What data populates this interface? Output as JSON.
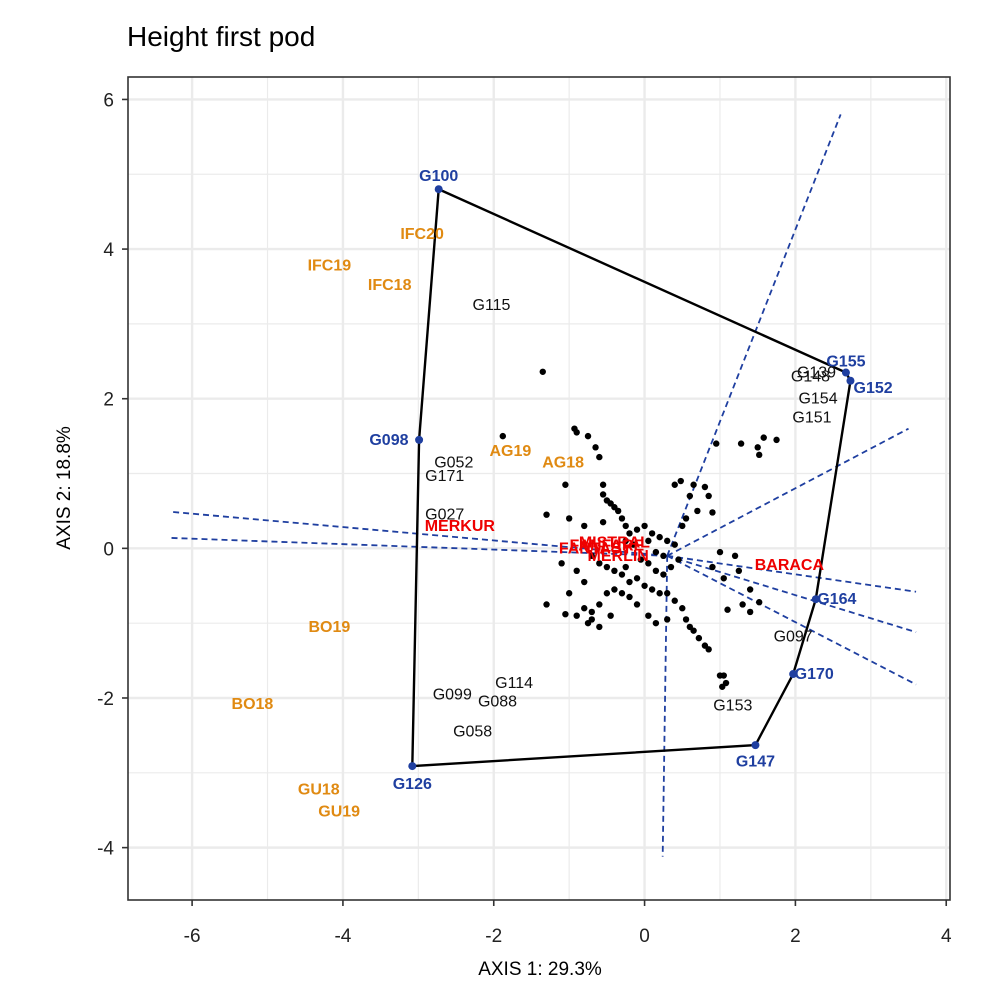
{
  "colors": {
    "vertex": "#1f3fa0",
    "environment": "#e08a12",
    "check": "#ee0000",
    "point": "#000000",
    "grid": "#ebebeb",
    "hull": "#000000"
  },
  "chart_data": {
    "type": "scatter",
    "title": "Height first pod",
    "xlabel": "AXIS 1: 29.3%",
    "ylabel": "AXIS 2: 18.8%",
    "xlim": [
      -6.85,
      4.05
    ],
    "ylim": [
      -4.7,
      6.3
    ],
    "x_ticks": [
      -6,
      -4,
      -2,
      0,
      2,
      4
    ],
    "y_ticks": [
      -4,
      -2,
      0,
      2,
      4,
      6
    ],
    "x_tick_labels": [
      "-6",
      "-4",
      "-2",
      "0",
      "2",
      "4"
    ],
    "y_tick_labels": [
      "-4",
      "-2",
      "0",
      "2",
      "4",
      "6"
    ],
    "grid": true,
    "hull_vertices": [
      {
        "label": "G100",
        "x": -2.73,
        "y": 4.8,
        "ldx": 0,
        "ldy": 0.18
      },
      {
        "label": "G155",
        "x": 2.67,
        "y": 2.35,
        "ldx": 0.0,
        "ldy": 0.15
      },
      {
        "label": "G152",
        "x": 2.73,
        "y": 2.24,
        "ldx": 0.3,
        "ldy": -0.1
      },
      {
        "label": "G164",
        "x": 2.27,
        "y": -0.68,
        "ldx": 0.28,
        "ldy": 0
      },
      {
        "label": "G170",
        "x": 1.97,
        "y": -1.68,
        "ldx": 0.28,
        "ldy": 0
      },
      {
        "label": "G147",
        "x": 1.47,
        "y": -2.63,
        "ldx": 0,
        "ldy": -0.22
      },
      {
        "label": "G126",
        "x": -3.08,
        "y": -2.91,
        "ldx": 0,
        "ldy": -0.24
      },
      {
        "label": "G098",
        "x": -2.99,
        "y": 1.45,
        "ldx": -0.4,
        "ldy": 0
      }
    ],
    "sector_rays": [
      {
        "x": 2.6,
        "y": 5.8
      },
      {
        "x": 3.5,
        "y": 1.6
      },
      {
        "x": 3.6,
        "y": -0.58
      },
      {
        "x": 3.6,
        "y": -1.12
      },
      {
        "x": 3.6,
        "y": -1.82
      },
      {
        "x": 0.24,
        "y": -4.12
      },
      {
        "x": -6.3,
        "y": 0.14
      },
      {
        "x": -6.3,
        "y": 0.49
      }
    ],
    "ray_origin": {
      "x": 0.3,
      "y": -0.1
    },
    "environments": [
      {
        "label": "IFC20",
        "x": -2.95,
        "y": 4.2
      },
      {
        "label": "IFC19",
        "x": -4.18,
        "y": 3.78
      },
      {
        "label": "IFC18",
        "x": -3.38,
        "y": 3.52
      },
      {
        "label": "AG19",
        "x": -1.78,
        "y": 1.3
      },
      {
        "label": "AG18",
        "x": -1.08,
        "y": 1.15
      },
      {
        "label": "BO19",
        "x": -4.18,
        "y": -1.05
      },
      {
        "label": "BO18",
        "x": -5.2,
        "y": -2.08
      },
      {
        "label": "GU18",
        "x": -4.32,
        "y": -3.22
      },
      {
        "label": "GU19",
        "x": -4.05,
        "y": -3.52
      }
    ],
    "checks": [
      {
        "label": "MERKUR",
        "x": -2.45,
        "y": 0.3
      },
      {
        "label": "MISTRAL",
        "x": -0.4,
        "y": 0.08
      },
      {
        "label": "FANTASY",
        "x": -0.65,
        "y": 0.0
      },
      {
        "label": "MERLIN",
        "x": -0.35,
        "y": -0.1
      },
      {
        "label": "FANFARE",
        "x": -0.5,
        "y": 0.04
      },
      {
        "label": "BARACA",
        "x": 1.92,
        "y": -0.22
      }
    ],
    "genotype_labels": [
      {
        "label": "G115",
        "x": -2.03,
        "y": 3.25
      },
      {
        "label": "G052",
        "x": -2.53,
        "y": 1.15
      },
      {
        "label": "G171",
        "x": -2.65,
        "y": 0.97
      },
      {
        "label": "G027",
        "x": -2.65,
        "y": 0.45
      },
      {
        "label": "G139",
        "x": 2.28,
        "y": 2.35
      },
      {
        "label": "G148",
        "x": 2.2,
        "y": 2.3
      },
      {
        "label": "G154",
        "x": 2.3,
        "y": 2.0
      },
      {
        "label": "G151",
        "x": 2.22,
        "y": 1.75
      },
      {
        "label": "G097",
        "x": 1.97,
        "y": -1.18
      },
      {
        "label": "G114",
        "x": -1.73,
        "y": -1.8
      },
      {
        "label": "G099",
        "x": -2.55,
        "y": -1.95
      },
      {
        "label": "G088",
        "x": -1.95,
        "y": -2.05
      },
      {
        "label": "G058",
        "x": -2.28,
        "y": -2.45
      },
      {
        "label": "G153",
        "x": 1.17,
        "y": -2.1
      }
    ],
    "points": [
      [
        -1.35,
        2.36
      ],
      [
        -1.88,
        1.5
      ],
      [
        -0.93,
        1.6
      ],
      [
        -0.9,
        1.55
      ],
      [
        -0.75,
        1.5
      ],
      [
        -0.65,
        1.35
      ],
      [
        -0.6,
        1.22
      ],
      [
        -1.05,
        0.85
      ],
      [
        -0.55,
        0.85
      ],
      [
        -0.55,
        0.72
      ],
      [
        -0.5,
        0.64
      ],
      [
        -0.45,
        0.6
      ],
      [
        -0.4,
        0.55
      ],
      [
        -0.35,
        0.5
      ],
      [
        -0.3,
        0.4
      ],
      [
        -0.25,
        0.3
      ],
      [
        -1.3,
        0.45
      ],
      [
        -1.0,
        0.4
      ],
      [
        -0.8,
        0.3
      ],
      [
        -0.55,
        0.35
      ],
      [
        -0.2,
        0.2
      ],
      [
        -0.1,
        0.25
      ],
      [
        0.0,
        0.3
      ],
      [
        0.1,
        0.2
      ],
      [
        0.2,
        0.15
      ],
      [
        0.3,
        0.1
      ],
      [
        0.4,
        0.05
      ],
      [
        0.5,
        0.3
      ],
      [
        0.55,
        0.4
      ],
      [
        0.4,
        0.85
      ],
      [
        0.48,
        0.9
      ],
      [
        0.65,
        0.85
      ],
      [
        0.8,
        0.82
      ],
      [
        0.85,
        0.7
      ],
      [
        0.6,
        0.7
      ],
      [
        0.7,
        0.5
      ],
      [
        0.95,
        1.4
      ],
      [
        1.28,
        1.4
      ],
      [
        1.5,
        1.35
      ],
      [
        1.58,
        1.48
      ],
      [
        1.75,
        1.45
      ],
      [
        1.52,
        1.25
      ],
      [
        0.9,
        0.48
      ],
      [
        -0.7,
        -0.1
      ],
      [
        -0.6,
        -0.2
      ],
      [
        -0.5,
        -0.25
      ],
      [
        -0.4,
        -0.3
      ],
      [
        -0.3,
        -0.35
      ],
      [
        -0.2,
        -0.45
      ],
      [
        -0.1,
        -0.4
      ],
      [
        0.0,
        -0.5
      ],
      [
        0.1,
        -0.55
      ],
      [
        0.2,
        -0.6
      ],
      [
        0.3,
        -0.6
      ],
      [
        0.4,
        -0.7
      ],
      [
        0.5,
        -0.8
      ],
      [
        0.55,
        -0.95
      ],
      [
        0.6,
        -1.05
      ],
      [
        0.65,
        -1.1
      ],
      [
        0.72,
        -1.2
      ],
      [
        0.8,
        -1.3
      ],
      [
        0.85,
        -1.35
      ],
      [
        -1.3,
        -0.75
      ],
      [
        -1.05,
        -0.88
      ],
      [
        -0.9,
        -0.9
      ],
      [
        -0.8,
        -0.8
      ],
      [
        -0.7,
        -0.85
      ],
      [
        -0.6,
        -0.75
      ],
      [
        -0.5,
        -0.6
      ],
      [
        -0.4,
        -0.55
      ],
      [
        -0.3,
        -0.6
      ],
      [
        -0.2,
        -0.65
      ],
      [
        -1.0,
        -0.6
      ],
      [
        -0.8,
        -0.45
      ],
      [
        -0.7,
        -0.95
      ],
      [
        -0.6,
        -1.05
      ],
      [
        -0.75,
        -1.0
      ],
      [
        -0.9,
        -0.3
      ],
      [
        -1.1,
        -0.2
      ],
      [
        -0.05,
        -0.15
      ],
      [
        0.05,
        -0.2
      ],
      [
        0.15,
        -0.3
      ],
      [
        0.25,
        -0.35
      ],
      [
        0.35,
        -0.25
      ],
      [
        0.45,
        -0.15
      ],
      [
        -0.15,
        0.05
      ],
      [
        -0.25,
        0.1
      ],
      [
        0.05,
        0.1
      ],
      [
        0.15,
        -0.05
      ],
      [
        0.25,
        -0.1
      ],
      [
        1.0,
        -0.05
      ],
      [
        1.2,
        -0.1
      ],
      [
        1.25,
        -0.3
      ],
      [
        0.9,
        -0.25
      ],
      [
        1.05,
        -0.4
      ],
      [
        1.4,
        -0.55
      ],
      [
        1.3,
        -0.75
      ],
      [
        1.52,
        -0.72
      ],
      [
        1.4,
        -0.85
      ],
      [
        1.1,
        -0.82
      ],
      [
        1.0,
        -1.7
      ],
      [
        1.05,
        -1.7
      ],
      [
        1.08,
        -1.8
      ],
      [
        1.03,
        -1.85
      ],
      [
        -0.45,
        -0.9
      ],
      [
        -0.1,
        -0.75
      ],
      [
        0.05,
        -0.9
      ],
      [
        0.15,
        -1.0
      ],
      [
        0.3,
        -0.95
      ],
      [
        -0.25,
        -0.25
      ]
    ]
  }
}
